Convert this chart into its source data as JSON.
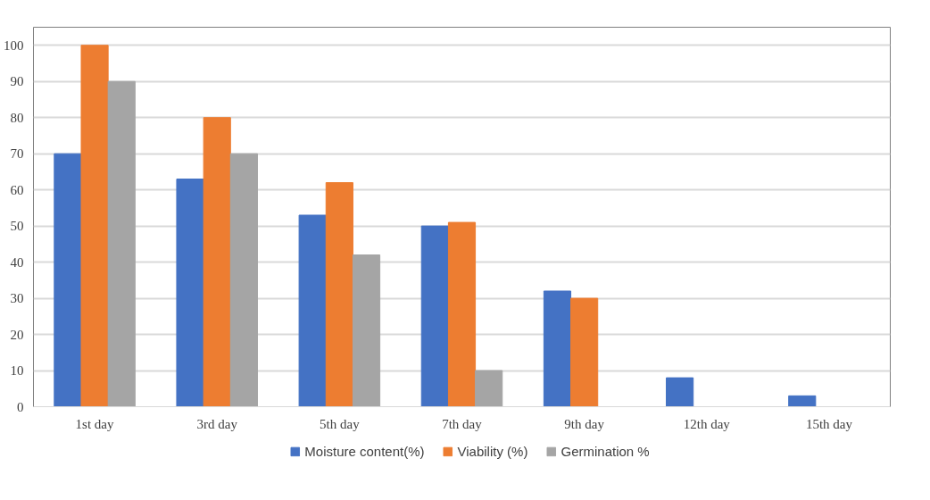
{
  "chart_data": {
    "type": "bar",
    "categories": [
      "1st day",
      "3rd day",
      "5th day",
      "7th day",
      "9th day",
      "12th day",
      "15th day"
    ],
    "series": [
      {
        "name": "Moisture content(%)",
        "color": "#4472c4",
        "values": [
          70,
          63,
          53,
          50,
          32,
          8,
          3
        ]
      },
      {
        "name": "Viability (%)",
        "color": "#ed7d31",
        "values": [
          100,
          80,
          62,
          51,
          30,
          0,
          0
        ]
      },
      {
        "name": "Germination %",
        "color": "#a5a5a5",
        "values": [
          90,
          70,
          42,
          10,
          0,
          0,
          0
        ]
      }
    ],
    "ylim": [
      0,
      105
    ],
    "yticks": [
      0,
      10,
      20,
      30,
      40,
      50,
      60,
      70,
      80,
      90,
      100
    ],
    "grid": "y",
    "legend": "bottom"
  }
}
